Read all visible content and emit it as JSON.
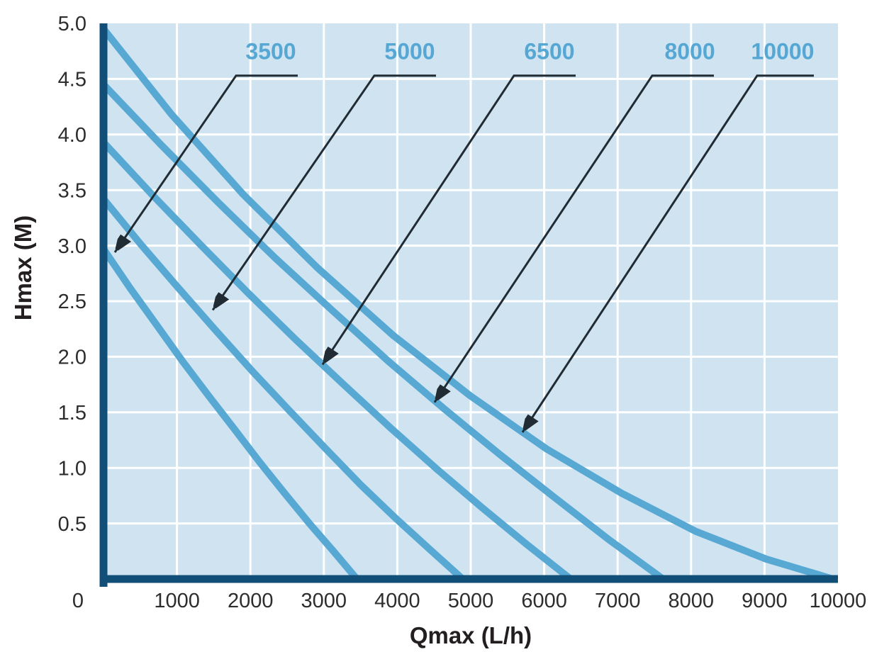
{
  "page": {
    "background": "#ffffff",
    "description": "Pump performance curve chart: head (Hmax) versus flow rate (Qmax) for five pump models"
  },
  "chart_data": {
    "type": "line",
    "title": "",
    "xlabel": "Qmax (L/h)",
    "ylabel": "Hmax (M)",
    "xlim": [
      0,
      10000
    ],
    "ylim": [
      0,
      5
    ],
    "grid": true,
    "origin_label": "0",
    "x_ticks": [
      1000,
      2000,
      3000,
      4000,
      5000,
      6000,
      7000,
      8000,
      9000,
      10000
    ],
    "x_tick_labels": [
      "1000",
      "2000",
      "3000",
      "4000",
      "5000",
      "6000",
      "7000",
      "8000",
      "9000",
      "10000"
    ],
    "y_ticks": [
      0.5,
      1.0,
      1.5,
      2.0,
      2.5,
      3.0,
      3.5,
      4.0,
      4.5,
      5.0
    ],
    "y_tick_labels": [
      "0.5",
      "1.0",
      "1.5",
      "2.0",
      "2.5",
      "3.0",
      "3.5",
      "4.0",
      "4.5",
      "5.0"
    ],
    "colors": {
      "plot_bg": "#cfe4f0",
      "grid": "#ffffff",
      "curve": "#58a8d4",
      "curve_label": "#56a7d4",
      "axis": "#114e78",
      "leader": "#212b33",
      "tick_text": "#2d2d2d",
      "title_text": "#231f20"
    },
    "series": [
      {
        "name": "3500",
        "hmax_m": 3.0,
        "qmax_lh": 3500,
        "points": [
          [
            0,
            2.97
          ],
          [
            360,
            2.62
          ],
          [
            719,
            2.29
          ],
          [
            1076,
            1.96
          ],
          [
            1430,
            1.65
          ],
          [
            1781,
            1.35
          ],
          [
            2128,
            1.05
          ],
          [
            2468,
            0.77
          ],
          [
            2803,
            0.5
          ],
          [
            3131,
            0.25
          ],
          [
            3450,
            0
          ]
        ]
      },
      {
        "name": "5000",
        "hmax_m": 3.5,
        "qmax_lh": 5000,
        "points": [
          [
            0,
            3.42
          ],
          [
            510,
            3.01
          ],
          [
            1018,
            2.62
          ],
          [
            1524,
            2.24
          ],
          [
            2027,
            1.87
          ],
          [
            2524,
            1.52
          ],
          [
            3014,
            1.18
          ],
          [
            3498,
            0.85
          ],
          [
            3973,
            0.55
          ],
          [
            4437,
            0.27
          ],
          [
            4890,
            0
          ]
        ]
      },
      {
        "name": "6500",
        "hmax_m": 4.0,
        "qmax_lh": 6500,
        "points": [
          [
            0,
            3.93
          ],
          [
            660,
            3.46
          ],
          [
            1318,
            3.01
          ],
          [
            1974,
            2.57
          ],
          [
            2625,
            2.15
          ],
          [
            3270,
            1.75
          ],
          [
            3908,
            1.36
          ],
          [
            4538,
            0.99
          ],
          [
            5157,
            0.64
          ],
          [
            5765,
            0.31
          ],
          [
            6360,
            0
          ]
        ]
      },
      {
        "name": "8000",
        "hmax_m": 4.5,
        "qmax_lh": 8000,
        "points": [
          [
            0,
            4.45
          ],
          [
            780,
            3.91
          ],
          [
            1559,
            3.39
          ],
          [
            2335,
            2.89
          ],
          [
            3109,
            2.42
          ],
          [
            3878,
            1.96
          ],
          [
            4641,
            1.53
          ],
          [
            5398,
            1.12
          ],
          [
            6148,
            0.73
          ],
          [
            6889,
            0.35
          ],
          [
            7620,
            0
          ]
        ]
      },
      {
        "name": "10000",
        "hmax_m": 5.0,
        "qmax_lh": 10000,
        "points": [
          [
            0,
            4.95
          ],
          [
            928,
            4.18
          ],
          [
            1903,
            3.46
          ],
          [
            2914,
            2.8
          ],
          [
            3948,
            2.19
          ],
          [
            4991,
            1.65
          ],
          [
            6033,
            1.17
          ],
          [
            7060,
            0.77
          ],
          [
            8060,
            0.43
          ],
          [
            9021,
            0.18
          ],
          [
            9930,
            0
          ]
        ]
      }
    ],
    "annotations": [
      {
        "label": "3500",
        "label_q": 2278,
        "label_h": 4.75,
        "leader_points": [
          [
            2645,
            4.53
          ],
          [
            1805,
            4.53
          ],
          [
            154,
            2.94
          ]
        ]
      },
      {
        "label": "5000",
        "label_q": 4170,
        "label_h": 4.75,
        "leader_points": [
          [
            4527,
            4.53
          ],
          [
            3687,
            4.53
          ],
          [
            1487,
            2.42
          ]
        ]
      },
      {
        "label": "6500",
        "label_q": 6071,
        "label_h": 4.75,
        "leader_points": [
          [
            6429,
            4.53
          ],
          [
            5589,
            4.53
          ],
          [
            2983,
            1.93
          ]
        ]
      },
      {
        "label": "8000",
        "label_q": 7983,
        "label_h": 4.75,
        "leader_points": [
          [
            8311,
            4.53
          ],
          [
            7471,
            4.53
          ],
          [
            4508,
            1.59
          ]
        ]
      },
      {
        "label": "10000",
        "label_q": 9247,
        "label_h": 4.75,
        "leader_points": [
          [
            9672,
            4.53
          ],
          [
            8900,
            4.53
          ],
          [
            5705,
            1.32
          ]
        ]
      }
    ]
  }
}
